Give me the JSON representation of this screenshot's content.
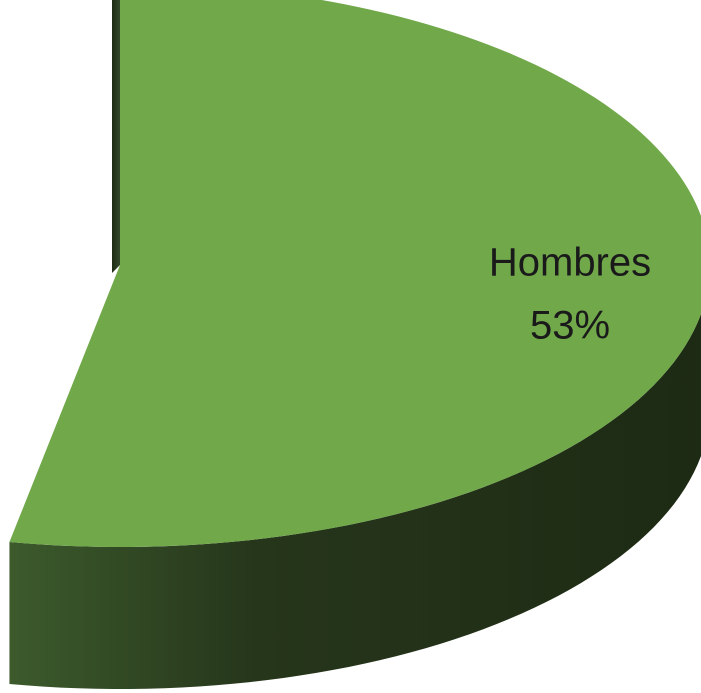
{
  "chart_data": {
    "type": "pie",
    "categories": [
      "Hombres"
    ],
    "values": [
      53
    ],
    "value_labels": [
      "53%"
    ],
    "colors": [
      "#70a84a"
    ]
  }
}
